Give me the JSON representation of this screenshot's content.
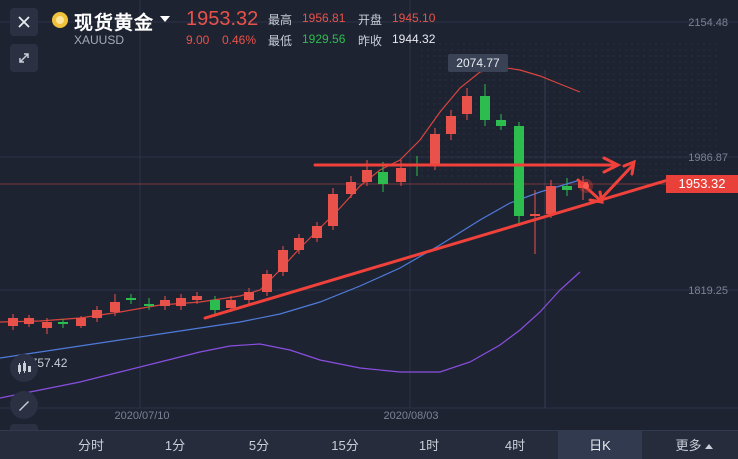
{
  "header": {
    "title": "现货黄金",
    "symbol": "XAUUSD",
    "price": "1953.32",
    "change": "9.00",
    "change_pct": "0.46%",
    "high_label": "最高",
    "high_value": "1956.81",
    "open_label": "开盘",
    "open_value": "1945.10",
    "low_label": "最低",
    "low_value": "1929.56",
    "prev_close_label": "昨收",
    "prev_close_value": "1944.32"
  },
  "chart": {
    "price_tag": "1953.32",
    "peak_label": "2074.77",
    "low_marker": "1757.42",
    "y_ticks": [
      "2154.48",
      "1986.87",
      "1819.25"
    ],
    "x_ticks": [
      "2020/07/10",
      "2020/08/03"
    ],
    "colors": {
      "up": "#e9524a",
      "down": "#2dbd4e",
      "ma_red": "#d9453d",
      "ma_blue": "#4f7bd9",
      "ma_purple": "#8a4fe0",
      "trend": "#f0413a"
    }
  },
  "toolbar": {
    "items": [
      "分时",
      "1分",
      "5分",
      "15分",
      "1时",
      "4时",
      "日K",
      "更多"
    ],
    "active": "日K"
  },
  "icons": {
    "close": "close-icon",
    "expand": "expand-icon",
    "candle": "candlestick-icon",
    "draw": "pen-icon",
    "indicator": "indicator-icon"
  }
}
